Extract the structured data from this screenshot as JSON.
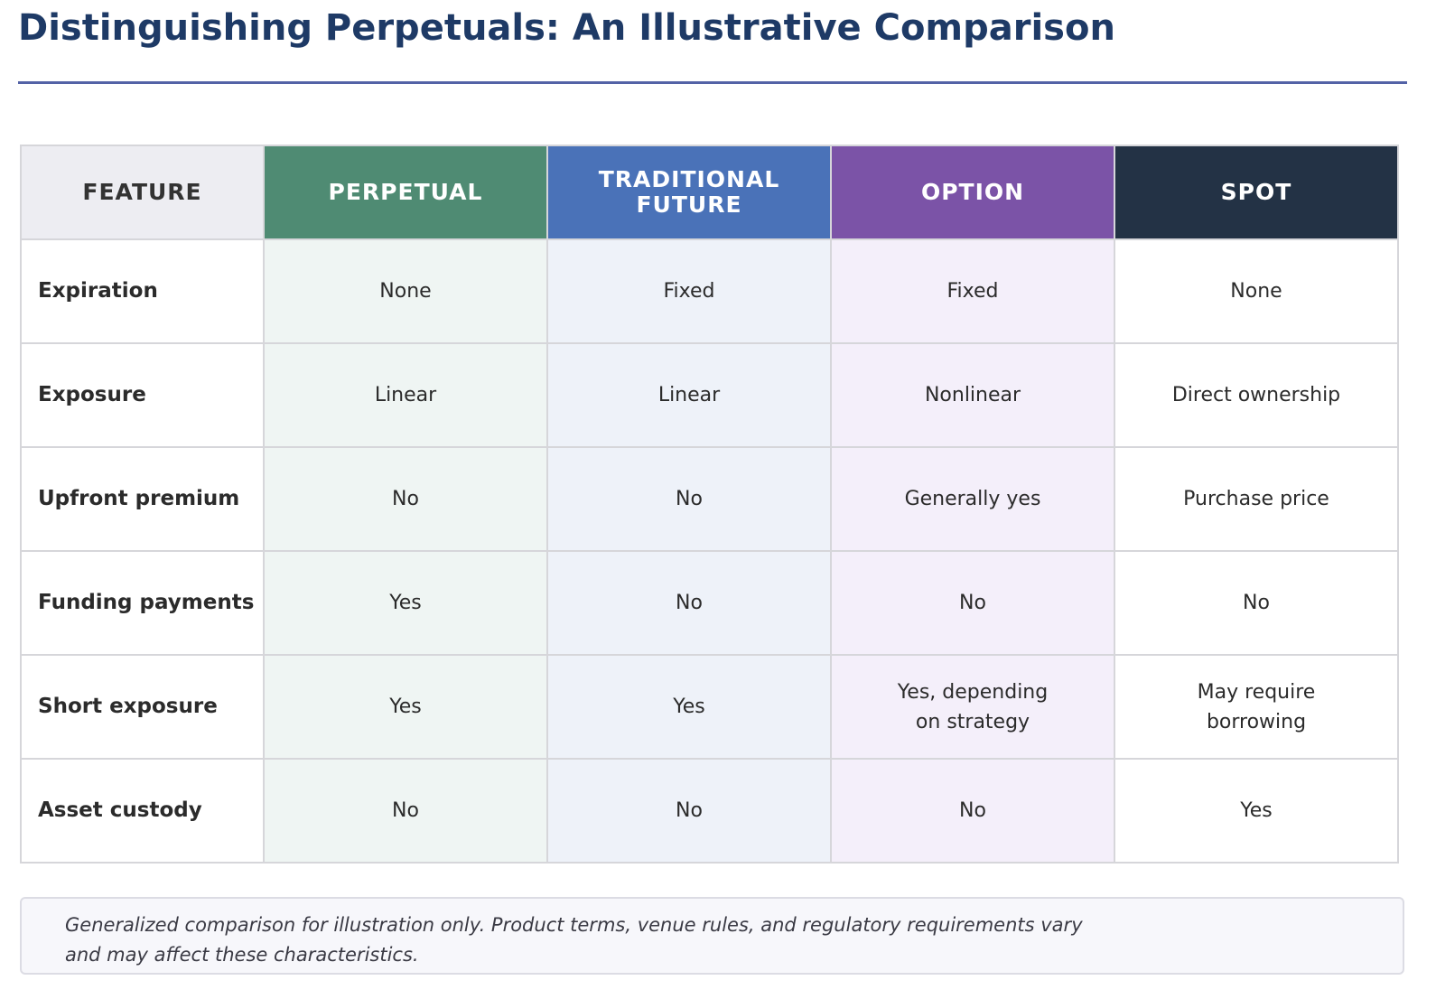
{
  "page": {
    "title": "Distinguishing Perpetuals: An Illustrative Comparison"
  },
  "table": {
    "headers": [
      "FEATURE",
      "PERPETUAL",
      "TRADITIONAL\nFUTURE",
      "OPTION",
      "SPOT"
    ],
    "header_colors": [
      "#ededf2",
      "#4f8b73",
      "#4a72b8",
      "#7b53a7",
      "#233245"
    ],
    "rows": [
      {
        "feature": "Expiration",
        "perpetual": "None",
        "future": "Fixed",
        "option": "Fixed",
        "spot": "None"
      },
      {
        "feature": "Exposure",
        "perpetual": "Linear",
        "future": "Linear",
        "option": "Nonlinear",
        "spot": "Direct ownership"
      },
      {
        "feature": "Upfront premium",
        "perpetual": "No",
        "future": "No",
        "option": "Generally yes",
        "spot": "Purchase price"
      },
      {
        "feature": "Funding payments",
        "perpetual": "Yes",
        "future": "No",
        "option": "No",
        "spot": "No"
      },
      {
        "feature": "Short exposure",
        "perpetual": "Yes",
        "future": "Yes",
        "option": "Yes, depending\non strategy",
        "spot": "May require\nborrowing"
      },
      {
        "feature": "Asset custody",
        "perpetual": "No",
        "future": "No",
        "option": "No",
        "spot": "Yes"
      }
    ]
  },
  "footnote": {
    "line1": "Generalized comparison for illustration only. Product terms, venue rules, and regulatory requirements vary",
    "line2": "and may affect these characteristics."
  }
}
